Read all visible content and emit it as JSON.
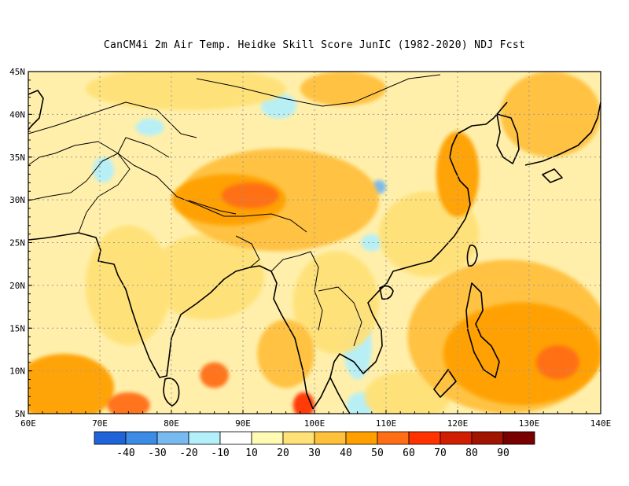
{
  "chart_data": {
    "type": "heatmap",
    "title": "CanCM4i  2m Air Temp. Heidke Skill Score JunIC (1982-2020) NDJ Fcst",
    "x_ticks": [
      "60E",
      "70E",
      "80E",
      "90E",
      "100E",
      "110E",
      "120E",
      "130E",
      "140E"
    ],
    "y_ticks": [
      "45N",
      "40N",
      "35N",
      "30N",
      "25N",
      "20N",
      "15N",
      "10N",
      "5N"
    ],
    "xlim": [
      60,
      140
    ],
    "ylim": [
      5,
      45
    ],
    "grid": true,
    "colorbar": {
      "labels": [
        "-40",
        "-30",
        "-20",
        "-10",
        "10",
        "20",
        "30",
        "40",
        "50",
        "60",
        "70",
        "80",
        "90"
      ],
      "colors": [
        "#1e64d8",
        "#3c8ce6",
        "#78b9f0",
        "#b4f0fa",
        "#ffffff",
        "#fffab4",
        "#ffe178",
        "#ffc03c",
        "#ffa000",
        "#ff6e14",
        "#ff3200",
        "#d21e00",
        "#a01400",
        "#780000"
      ]
    },
    "skill_regions": [
      {
        "lon": 65,
        "lat": 8,
        "score": 40,
        "rx": 7,
        "ry": 4
      },
      {
        "lon": 74,
        "lat": 6,
        "score": 50,
        "rx": 3,
        "ry": 1.5
      },
      {
        "lon": 86,
        "lat": 9.5,
        "score": 50,
        "rx": 2,
        "ry": 1.5
      },
      {
        "lon": 98.5,
        "lat": 6,
        "score": 60,
        "rx": 1.5,
        "ry": 1.5
      },
      {
        "lon": 96,
        "lat": 12,
        "score": 30,
        "rx": 4,
        "ry": 4
      },
      {
        "lon": 91,
        "lat": 30.5,
        "score": 50,
        "rx": 4,
        "ry": 1.5
      },
      {
        "lon": 88,
        "lat": 30,
        "score": 40,
        "rx": 8,
        "ry": 3
      },
      {
        "lon": 95,
        "lat": 30,
        "score": 30,
        "rx": 14,
        "ry": 6
      },
      {
        "lon": 85,
        "lat": 21,
        "score": 20,
        "rx": 8,
        "ry": 5
      },
      {
        "lon": 74,
        "lat": 20,
        "score": 20,
        "rx": 6,
        "ry": 7
      },
      {
        "lon": 120,
        "lat": 33,
        "score": 40,
        "rx": 3,
        "ry": 5
      },
      {
        "lon": 133,
        "lat": 40,
        "score": 30,
        "rx": 7,
        "ry": 5
      },
      {
        "lon": 134,
        "lat": 11,
        "score": 50,
        "rx": 3,
        "ry": 2
      },
      {
        "lon": 129,
        "lat": 12,
        "score": 40,
        "rx": 11,
        "ry": 6
      },
      {
        "lon": 127,
        "lat": 14,
        "score": 30,
        "rx": 14,
        "ry": 9
      },
      {
        "lon": 113,
        "lat": 7,
        "score": 20,
        "rx": 6,
        "ry": 3
      },
      {
        "lon": 103,
        "lat": 18,
        "score": 20,
        "rx": 6,
        "ry": 6
      },
      {
        "lon": 116,
        "lat": 26,
        "score": 20,
        "rx": 7,
        "ry": 5
      },
      {
        "lon": 82,
        "lat": 43,
        "score": 20,
        "rx": 14,
        "ry": 2.5
      },
      {
        "lon": 104,
        "lat": 43,
        "score": 30,
        "rx": 6,
        "ry": 2
      },
      {
        "lon": 106,
        "lat": 13,
        "score": -10,
        "rx": 2,
        "ry": 4
      },
      {
        "lon": 106.5,
        "lat": 6,
        "score": -10,
        "rx": 2,
        "ry": 1.5
      },
      {
        "lon": 70.5,
        "lat": 33.5,
        "score": -10,
        "rx": 1.5,
        "ry": 1.5
      },
      {
        "lon": 108,
        "lat": 25,
        "score": -10,
        "rx": 1.5,
        "ry": 1
      },
      {
        "lon": 95,
        "lat": 41,
        "score": -10,
        "rx": 2.5,
        "ry": 1.5
      },
      {
        "lon": 109,
        "lat": 31.5,
        "score": -20,
        "rx": 1,
        "ry": 0.8
      },
      {
        "lon": 77,
        "lat": 38.5,
        "score": -10,
        "rx": 2,
        "ry": 1
      }
    ]
  }
}
